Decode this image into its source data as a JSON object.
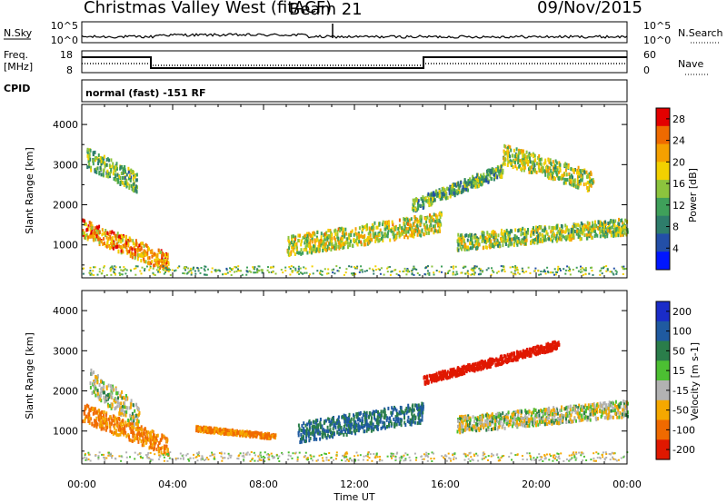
{
  "header": {
    "title": "Christmas Valley West (fitACF)",
    "beam": "Beam 21",
    "date": "09/Nov/2015"
  },
  "panels": {
    "nsky": {
      "left_label": "N.Sky",
      "left_ticks": [
        "10^5",
        "10^0"
      ],
      "right_ticks": [
        "10^5",
        "10^0"
      ],
      "right_label": "N.Search"
    },
    "freq": {
      "left_label_1": "Freq.",
      "left_label_2": "[MHz]",
      "left_ticks": [
        "18",
        "8"
      ],
      "right_ticks": [
        "60",
        "0"
      ],
      "right_label": "Nave",
      "freq_value_mhz": 12
    },
    "cpid": {
      "label": "CPID",
      "text": "normal (fast) -151 RF"
    }
  },
  "chart_data": [
    {
      "type": "heatmap",
      "quantity": "power",
      "ylabel": "Slant Range [km]",
      "xlabel": "Time UT",
      "ylim": [
        180,
        4500
      ],
      "yticks": [
        1000,
        2000,
        3000,
        4000
      ],
      "xticks": [
        "00:00",
        "04:00",
        "08:00",
        "12:00",
        "16:00",
        "20:00",
        "00:00"
      ],
      "colorbar_label": "Power [dB]",
      "colorbar_ticks": [
        4,
        8,
        12,
        16,
        20,
        24,
        28
      ],
      "colorbar_range": [
        0,
        30
      ],
      "colorbar_colors": [
        "#0016ff",
        "#234fa8",
        "#2e7d6b",
        "#3fa05a",
        "#8cc43d",
        "#f2d000",
        "#f5a000",
        "#ef6a00",
        "#e30000"
      ],
      "scatter_regions": [
        {
          "t_start": 0.0,
          "t_end": 3.8,
          "range_start": 1450,
          "range_end": 600,
          "width": 450,
          "power": 22
        },
        {
          "t_start": 0.2,
          "t_end": 2.4,
          "range_start": 3200,
          "range_end": 2600,
          "width": 500,
          "power": 13
        },
        {
          "t_start": 9.0,
          "t_end": 15.8,
          "range_start": 1000,
          "range_end": 1600,
          "width": 500,
          "power": 17
        },
        {
          "t_start": 14.5,
          "t_end": 18.5,
          "range_start": 2000,
          "range_end": 2900,
          "width": 300,
          "power": 12
        },
        {
          "t_start": 16.5,
          "t_end": 24.0,
          "range_start": 1100,
          "range_end": 1500,
          "width": 400,
          "power": 15
        },
        {
          "t_start": 18.5,
          "t_end": 22.5,
          "range_start": 3300,
          "range_end": 2600,
          "width": 500,
          "power": 16
        }
      ]
    },
    {
      "type": "heatmap",
      "quantity": "velocity",
      "ylabel": "Slant Range [km]",
      "xlabel": "Time UT",
      "ylim": [
        180,
        4500
      ],
      "yticks": [
        1000,
        2000,
        3000,
        4000
      ],
      "xticks": [
        "00:00",
        "04:00",
        "08:00",
        "12:00",
        "16:00",
        "20:00",
        "00:00"
      ],
      "colorbar_label": "Velocity [m s-1]",
      "colorbar_ticks": [
        "200",
        "100",
        "50",
        "15",
        "-15",
        "-50",
        "-100",
        "-200"
      ],
      "colorbar_colors": [
        "#1a2cc8",
        "#1f5aa0",
        "#2a7d4a",
        "#4cbf32",
        "#b2b2b2",
        "#f5a800",
        "#f06a00",
        "#e01800"
      ],
      "scatter_regions": [
        {
          "t_start": 0.0,
          "t_end": 3.8,
          "range_start": 1500,
          "range_end": 650,
          "width": 450,
          "velocity": -60
        },
        {
          "t_start": 0.3,
          "t_end": 2.5,
          "range_start": 2300,
          "range_end": 1400,
          "width": 600,
          "velocity": 0
        },
        {
          "t_start": 9.5,
          "t_end": 15.0,
          "range_start": 1000,
          "range_end": 1500,
          "width": 500,
          "velocity": 80
        },
        {
          "t_start": 15.0,
          "t_end": 21.0,
          "range_start": 2300,
          "range_end": 3200,
          "width": 200,
          "velocity": -200
        },
        {
          "t_start": 16.5,
          "t_end": 24.0,
          "range_start": 1200,
          "range_end": 1600,
          "width": 400,
          "velocity": 0
        },
        {
          "t_start": 5.0,
          "t_end": 8.5,
          "range_start": 1100,
          "range_end": 900,
          "width": 120,
          "velocity": -60
        }
      ]
    }
  ]
}
